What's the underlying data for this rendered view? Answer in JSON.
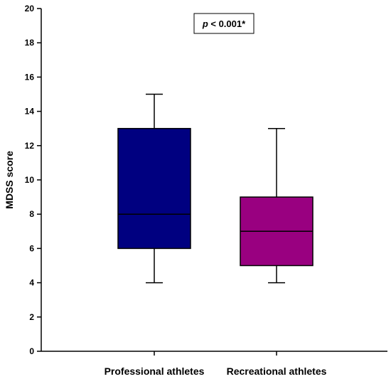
{
  "chart_data": {
    "type": "box",
    "ylabel": "MDSS score",
    "ylim": [
      0,
      20
    ],
    "yticks": [
      0,
      2,
      4,
      6,
      8,
      10,
      12,
      14,
      16,
      18,
      20
    ],
    "categories": [
      "Professional athletes",
      "Recreational athletes"
    ],
    "boxes": [
      {
        "category": "Professional athletes",
        "min": 4,
        "q1": 6,
        "median": 8,
        "q3": 13,
        "max": 15,
        "color": "#000080"
      },
      {
        "category": "Recreational athletes",
        "min": 4,
        "q1": 5,
        "median": 7,
        "q3": 9,
        "max": 13,
        "color": "#990080"
      }
    ],
    "annotation": {
      "p_symbol": "p",
      "p_rest": " < 0.001*"
    },
    "grid": false
  }
}
